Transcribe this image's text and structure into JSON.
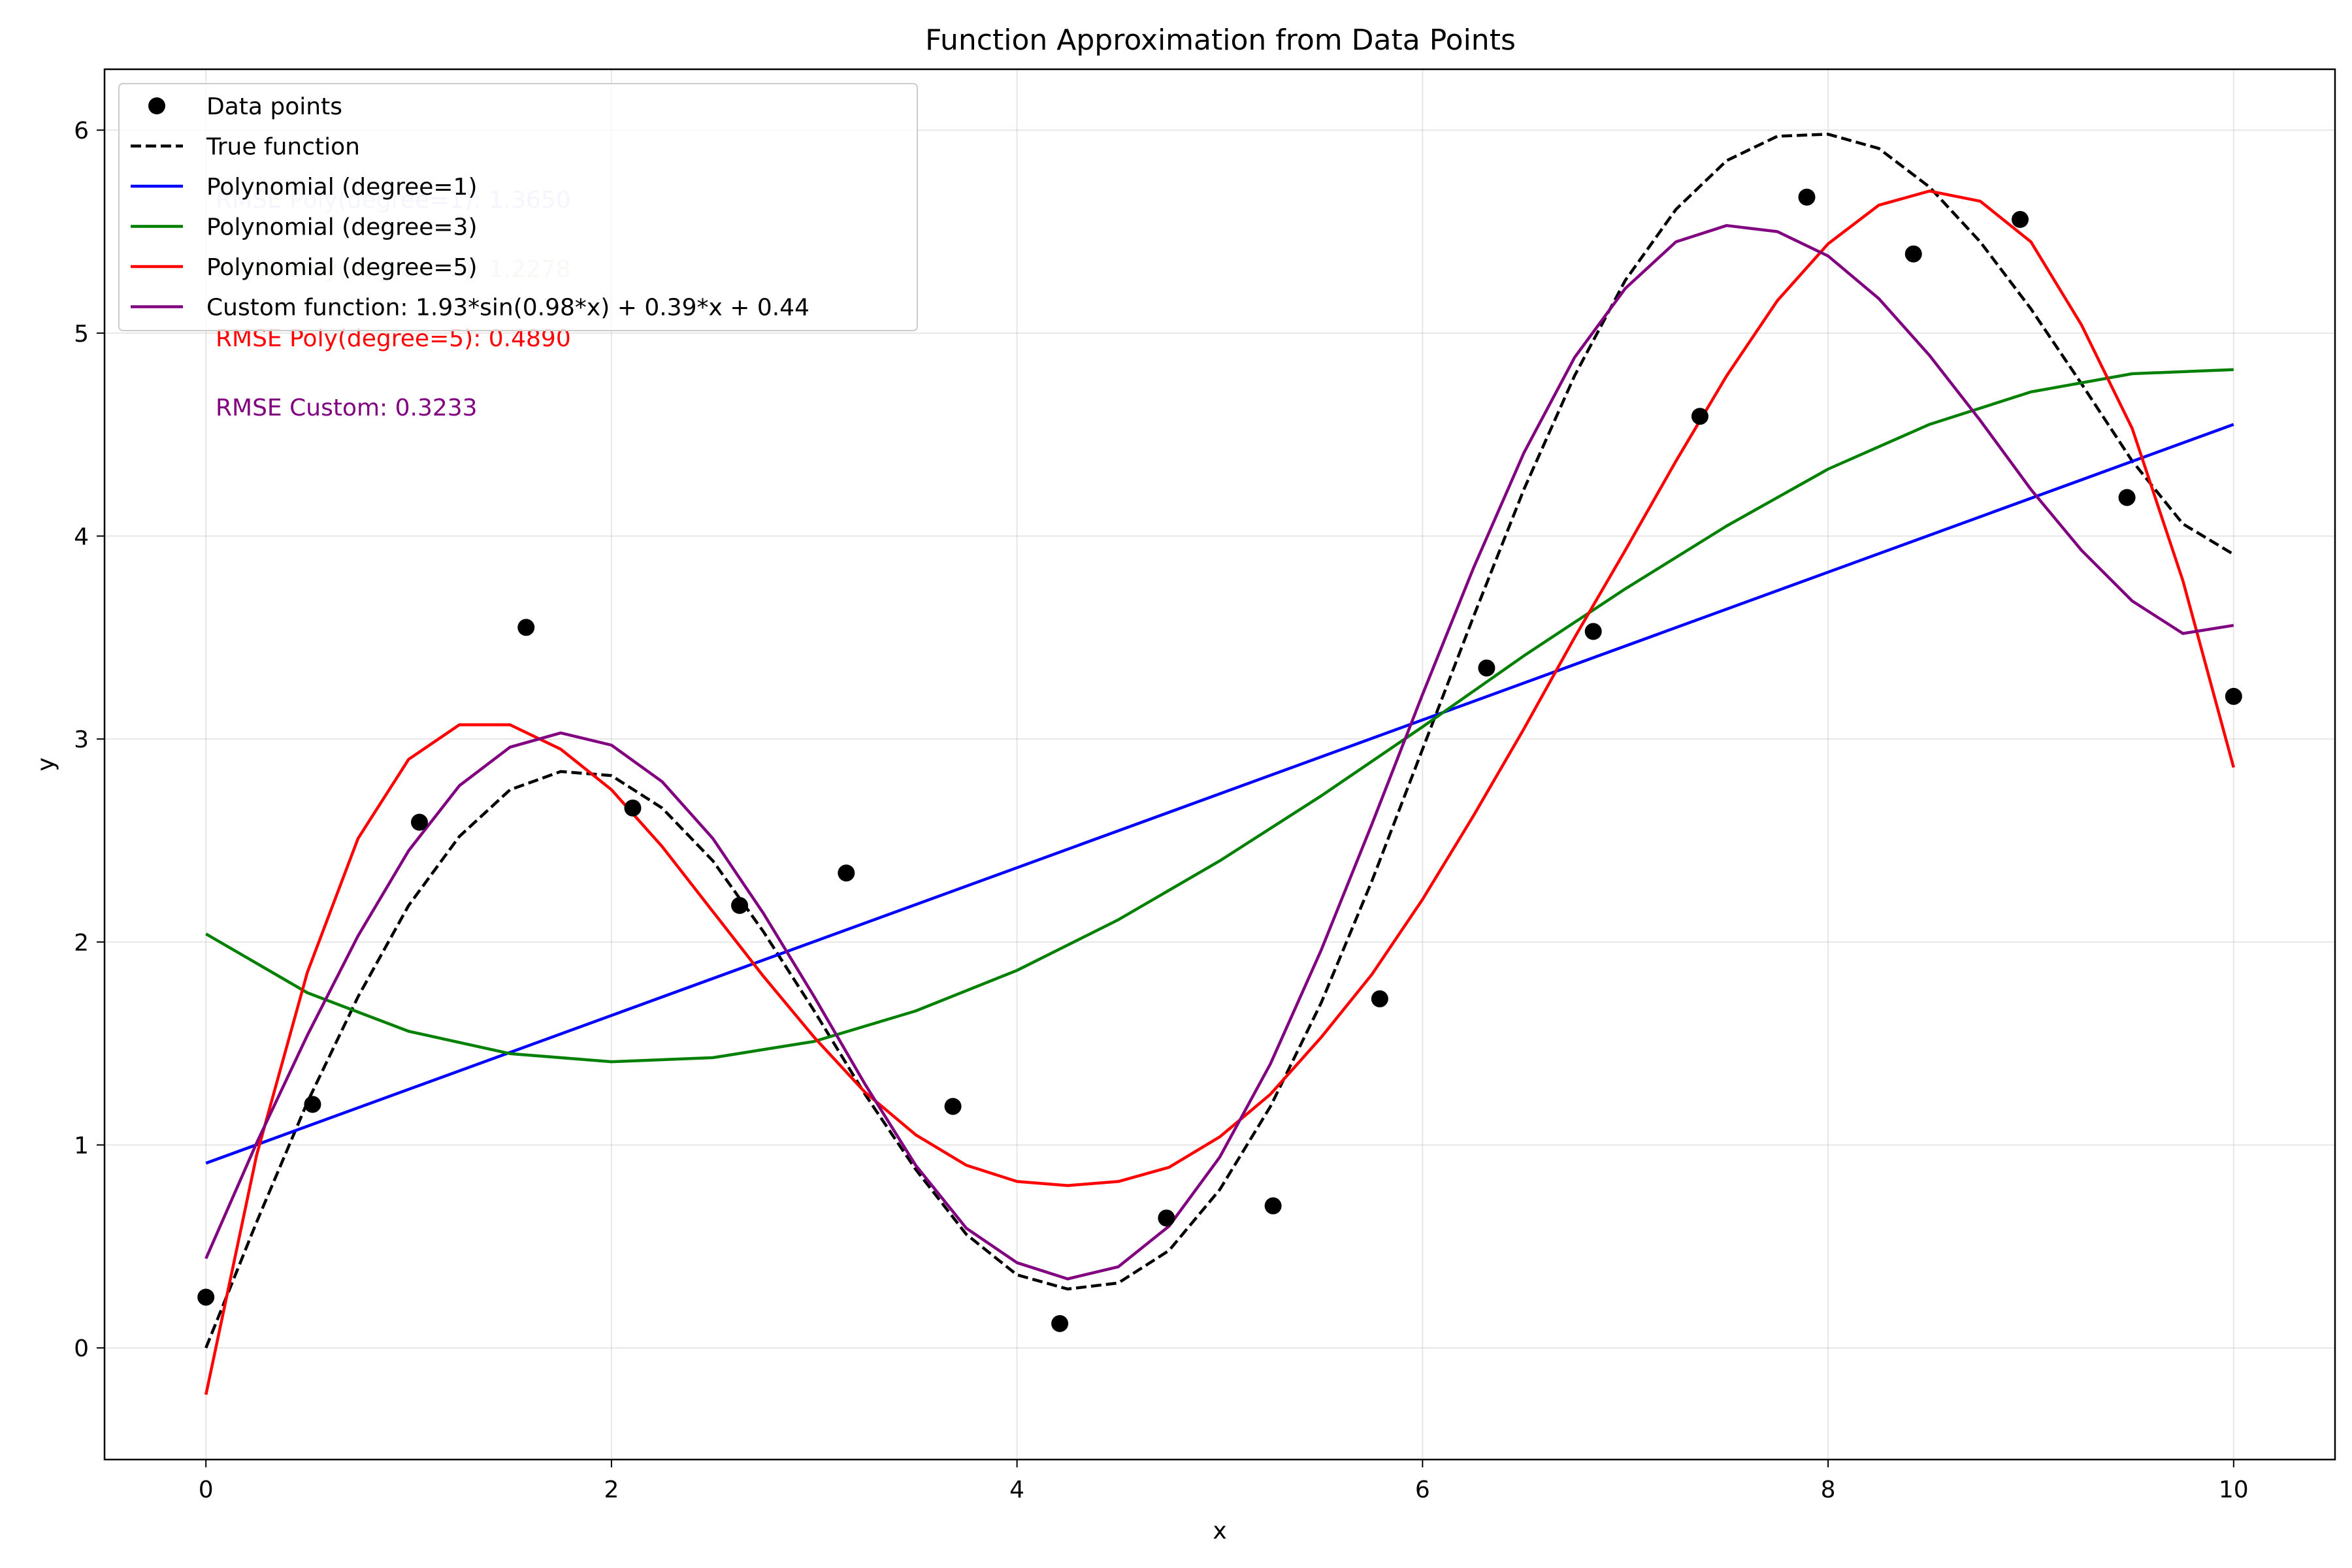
{
  "chart_data": {
    "type": "line",
    "title": "Function Approximation from Data Points",
    "xlabel": "x",
    "ylabel": "y",
    "xlim": [
      -0.5,
      10.5
    ],
    "ylim": [
      -0.55,
      6.3
    ],
    "xticks": [
      0,
      2,
      4,
      6,
      8,
      10
    ],
    "yticks": [
      0,
      1,
      2,
      3,
      4,
      5,
      6
    ],
    "grid": true,
    "legend_position": "top-left",
    "scatter": {
      "name": "Data points",
      "color": "#000000",
      "x": [
        0.0,
        0.526,
        1.053,
        1.579,
        2.105,
        2.632,
        3.158,
        3.684,
        4.211,
        4.737,
        5.263,
        5.789,
        6.316,
        6.842,
        7.368,
        7.895,
        8.421,
        8.947,
        9.474,
        10.0
      ],
      "y": [
        0.25,
        1.2,
        2.59,
        3.55,
        2.66,
        2.18,
        2.34,
        1.19,
        0.12,
        0.64,
        0.7,
        1.72,
        3.35,
        3.53,
        4.59,
        5.67,
        5.39,
        5.56,
        4.19,
        3.21
      ]
    },
    "series": [
      {
        "name": "True function",
        "color": "#000000",
        "style": "dashed",
        "x": [
          0,
          0.25,
          0.5,
          0.75,
          1.0,
          1.25,
          1.5,
          1.75,
          2.0,
          2.25,
          2.5,
          2.75,
          3.0,
          3.25,
          3.5,
          3.75,
          4.0,
          4.25,
          4.5,
          4.75,
          5.0,
          5.25,
          5.5,
          5.75,
          6.0,
          6.25,
          6.5,
          6.75,
          7.0,
          7.25,
          7.5,
          7.75,
          8.0,
          8.25,
          8.5,
          8.75,
          9.0,
          9.25,
          9.5,
          9.75,
          10.0
        ],
        "y": [
          0.0,
          0.62,
          1.21,
          1.73,
          2.18,
          2.52,
          2.75,
          2.84,
          2.82,
          2.66,
          2.4,
          2.05,
          1.66,
          1.25,
          0.88,
          0.56,
          0.36,
          0.29,
          0.32,
          0.48,
          0.78,
          1.19,
          1.7,
          2.3,
          2.95,
          3.6,
          4.23,
          4.79,
          5.26,
          5.61,
          5.85,
          5.97,
          5.98,
          5.91,
          5.72,
          5.45,
          5.12,
          4.75,
          4.37,
          4.06,
          3.91
        ]
      },
      {
        "name": "Polynomial (degree=1)",
        "color": "#0000ff",
        "style": "solid",
        "x": [
          0,
          10
        ],
        "y": [
          0.91,
          4.55
        ]
      },
      {
        "name": "Polynomial (degree=3)",
        "color": "#008000",
        "style": "solid",
        "x": [
          0,
          0.5,
          1.0,
          1.5,
          2.0,
          2.5,
          3.0,
          3.5,
          4.0,
          4.5,
          5.0,
          5.5,
          6.0,
          6.5,
          7.0,
          7.5,
          8.0,
          8.5,
          9.0,
          9.5,
          10.0
        ],
        "y": [
          2.04,
          1.75,
          1.56,
          1.45,
          1.41,
          1.43,
          1.51,
          1.66,
          1.86,
          2.11,
          2.4,
          2.72,
          3.06,
          3.41,
          3.74,
          4.05,
          4.33,
          4.55,
          4.71,
          4.8,
          4.82
        ]
      },
      {
        "name": "Polynomial (degree=5)",
        "color": "#ff0000",
        "style": "solid",
        "x": [
          0,
          0.25,
          0.5,
          0.75,
          1.0,
          1.25,
          1.5,
          1.75,
          2.0,
          2.25,
          2.5,
          2.75,
          3.0,
          3.25,
          3.5,
          3.75,
          4.0,
          4.25,
          4.5,
          4.75,
          5.0,
          5.25,
          5.5,
          5.75,
          6.0,
          6.25,
          6.5,
          6.75,
          7.0,
          7.25,
          7.5,
          7.75,
          8.0,
          8.25,
          8.5,
          8.75,
          9.0,
          9.25,
          9.5,
          9.75,
          10.0
        ],
        "y": [
          -0.23,
          0.95,
          1.85,
          2.51,
          2.9,
          3.07,
          3.07,
          2.95,
          2.75,
          2.47,
          2.15,
          1.83,
          1.53,
          1.26,
          1.05,
          0.9,
          0.82,
          0.8,
          0.82,
          0.89,
          1.04,
          1.25,
          1.53,
          1.84,
          2.21,
          2.62,
          3.05,
          3.5,
          3.93,
          4.37,
          4.79,
          5.16,
          5.44,
          5.63,
          5.7,
          5.65,
          5.45,
          5.04,
          4.53,
          3.78,
          2.86
        ]
      },
      {
        "name": "Custom function: 1.93*sin(0.98*x) + 0.39*x + 0.44",
        "color": "#800080",
        "style": "solid",
        "x": [
          0,
          0.25,
          0.5,
          0.75,
          1.0,
          1.25,
          1.5,
          1.75,
          2.0,
          2.25,
          2.5,
          2.75,
          3.0,
          3.25,
          3.5,
          3.75,
          4.0,
          4.25,
          4.5,
          4.75,
          5.0,
          5.25,
          5.5,
          5.75,
          6.0,
          6.25,
          6.5,
          6.75,
          7.0,
          7.25,
          7.5,
          7.75,
          8.0,
          8.25,
          8.5,
          8.75,
          9.0,
          9.25,
          9.5,
          9.75,
          10.0
        ],
        "y": [
          0.44,
          1.01,
          1.54,
          2.03,
          2.45,
          2.77,
          2.96,
          3.03,
          2.97,
          2.79,
          2.51,
          2.14,
          1.73,
          1.3,
          0.9,
          0.59,
          0.42,
          0.34,
          0.4,
          0.6,
          0.94,
          1.4,
          1.96,
          2.58,
          3.22,
          3.84,
          4.41,
          4.88,
          5.22,
          5.45,
          5.53,
          5.5,
          5.38,
          5.17,
          4.89,
          4.57,
          4.23,
          3.93,
          3.68,
          3.52,
          3.56
        ]
      }
    ],
    "annotations": [
      {
        "text": "RMSE Poly(degree=1): 1.3650",
        "color": "#0000ff",
        "alpha": 0.2
      },
      {
        "text": "RMSE Poly(degree=3): 1.2278",
        "color": "#008000",
        "alpha": 0.2
      },
      {
        "text": "RMSE Poly(degree=5): 0.4890",
        "color": "#ff0000",
        "alpha": 1.0
      },
      {
        "text": "RMSE Custom: 0.3233",
        "color": "#800080",
        "alpha": 1.0
      }
    ]
  }
}
